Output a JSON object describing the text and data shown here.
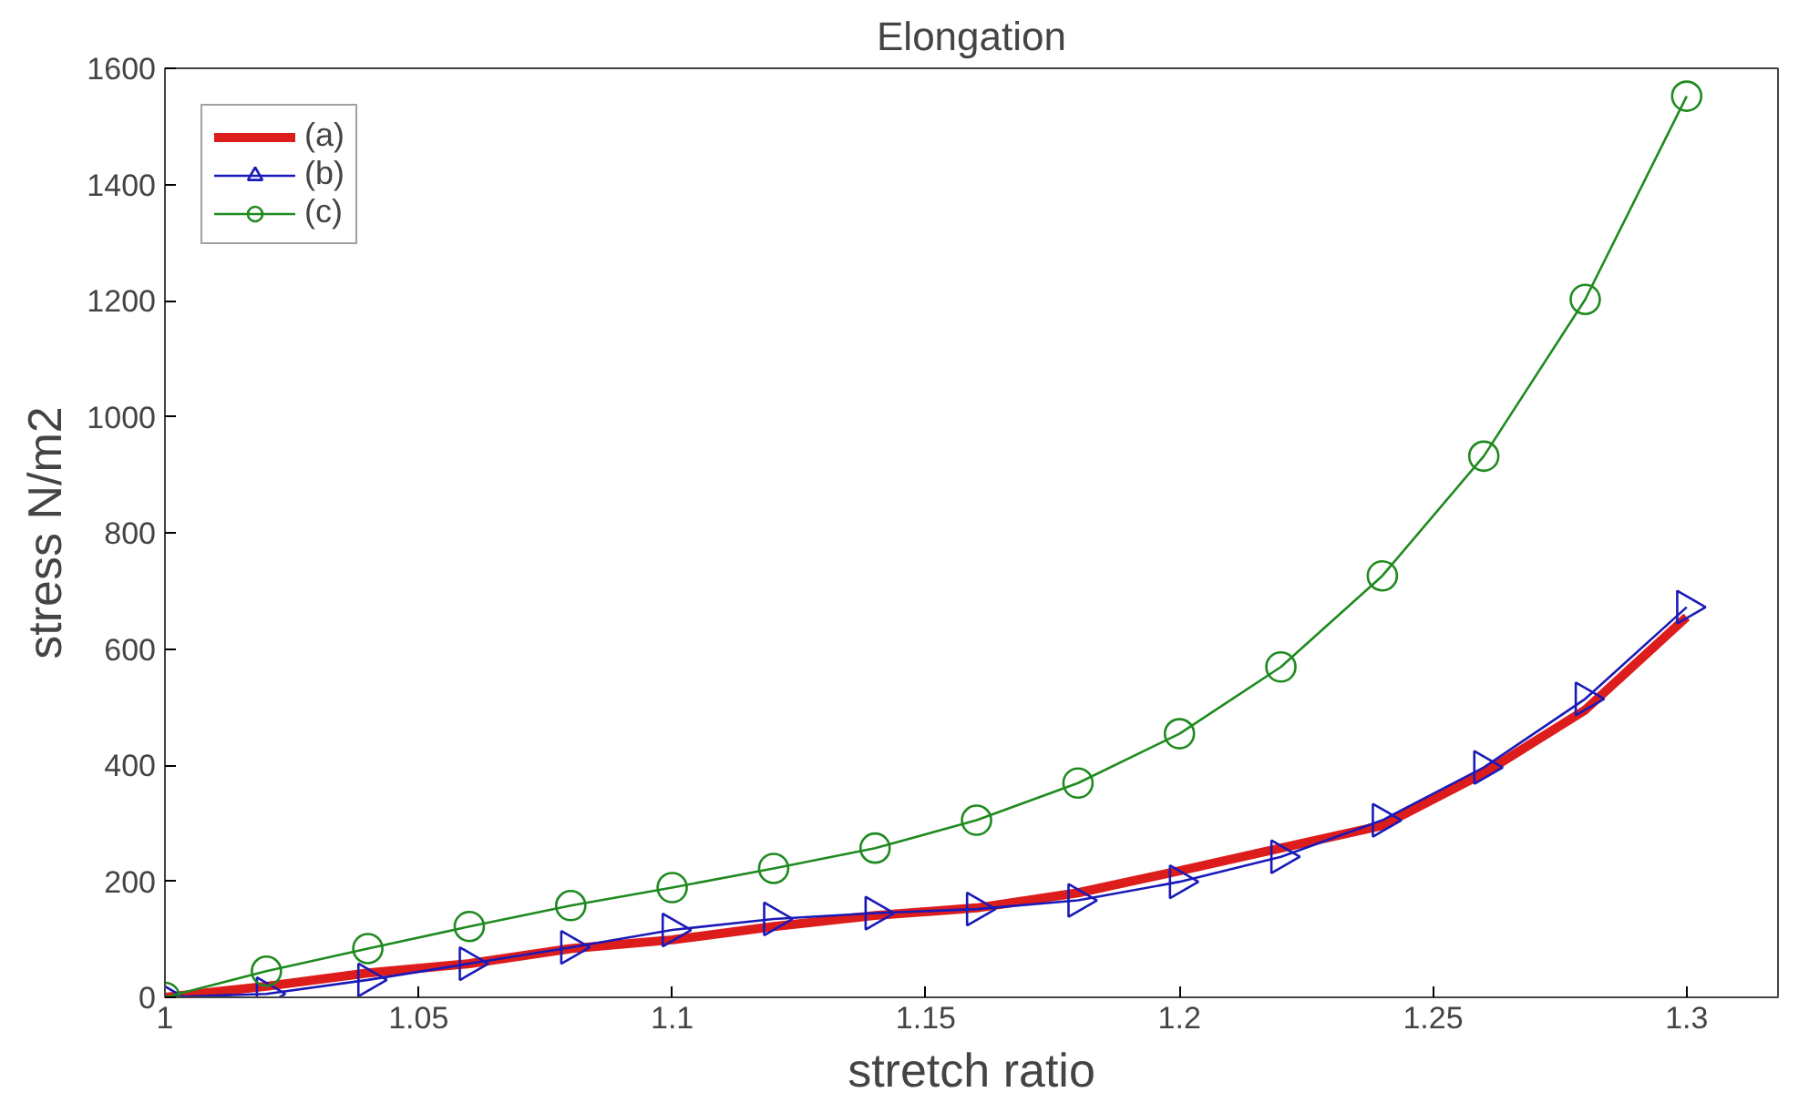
{
  "chart_data": {
    "type": "line",
    "title": "Elongation",
    "xlabel": "stretch ratio",
    "ylabel": "stress N/m2",
    "x": [
      1.0,
      1.02,
      1.04,
      1.06,
      1.08,
      1.1,
      1.12,
      1.14,
      1.16,
      1.18,
      1.2,
      1.22,
      1.24,
      1.26,
      1.28,
      1.3
    ],
    "series": [
      {
        "name": "(a)",
        "color": "#dd1c1c",
        "marker": "none",
        "values": [
          0,
          19,
          42,
          58,
          84,
          99,
          122,
          141,
          154,
          180,
          218,
          257,
          296,
          386,
          495,
          655
        ]
      },
      {
        "name": "(b)",
        "color": "#1a1ab8",
        "marker": "triangle",
        "values": [
          0,
          6,
          30,
          58,
          86,
          116,
          135,
          145,
          152,
          167,
          199,
          242,
          305,
          396,
          514,
          672
        ]
      },
      {
        "name": "(c)",
        "color": "#1f8a1f",
        "marker": "circle",
        "values": [
          0,
          45,
          84,
          122,
          158,
          189,
          222,
          257,
          305,
          369,
          454,
          569,
          726,
          932,
          1202,
          1552
        ]
      }
    ],
    "xlim": [
      1.0,
      1.318
    ],
    "ylim": [
      0,
      1600
    ],
    "xticks": [
      1,
      1.05,
      1.1,
      1.15,
      1.2,
      1.25,
      1.3
    ],
    "yticks": [
      0,
      200,
      400,
      600,
      800,
      1000,
      1200,
      1400,
      1600
    ],
    "grid": false,
    "legend": "top left"
  }
}
